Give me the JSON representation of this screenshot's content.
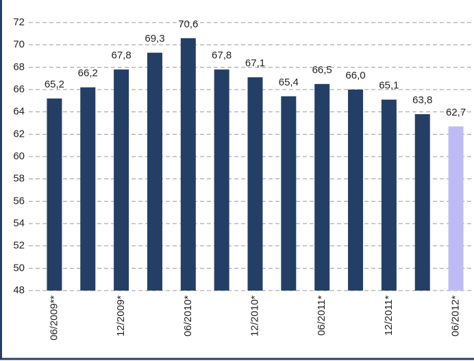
{
  "chart_data": {
    "type": "bar",
    "categories": [
      "06/2009**",
      null,
      "12/2009*",
      null,
      "06/2010*",
      null,
      "12/2010*",
      null,
      "06/2011*",
      null,
      "12/2011*",
      null,
      "06/2012*"
    ],
    "values": [
      65.2,
      66.2,
      67.8,
      69.3,
      70.6,
      67.8,
      67.1,
      65.4,
      66.5,
      66.0,
      65.1,
      63.8,
      62.7
    ],
    "value_labels": [
      "65,2",
      "66,2",
      "67,8",
      "69,3",
      "70,6",
      "67,8",
      "67,1",
      "65,4",
      "66,5",
      "66,0",
      "65,1",
      "63,8",
      "62,7"
    ],
    "colors": [
      "#243f66",
      "#243f66",
      "#243f66",
      "#243f66",
      "#243f66",
      "#243f66",
      "#243f66",
      "#243f66",
      "#243f66",
      "#243f66",
      "#243f66",
      "#243f66",
      "#bcbcf4"
    ],
    "ylim": [
      48,
      72
    ],
    "yticks": [
      48,
      50,
      52,
      54,
      56,
      58,
      60,
      62,
      64,
      66,
      68,
      70,
      72
    ],
    "grid": true
  }
}
